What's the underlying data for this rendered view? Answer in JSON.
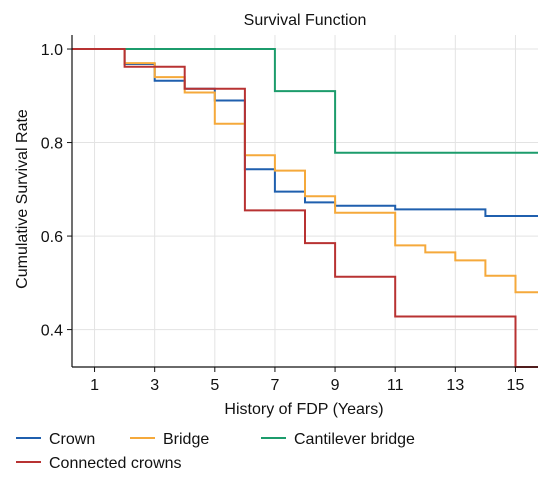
{
  "chart_data": {
    "type": "line",
    "step": "post",
    "title": "Survival Function",
    "xlabel": "History of FDP (Years)",
    "ylabel": "Cumulative Survival Rate",
    "xlim": [
      0.25,
      15.75
    ],
    "ylim": [
      0.32,
      1.03
    ],
    "xticks": [
      1,
      3,
      5,
      7,
      9,
      11,
      13,
      15
    ],
    "yticks": [
      0.4,
      0.6,
      0.8,
      1.0
    ],
    "ytick_labels": [
      "0.4",
      "0.6",
      "0.8",
      "1.0"
    ],
    "grid": true,
    "legend_position": "bottom",
    "series": [
      {
        "name": "Crown",
        "color": "#1f5fae",
        "x": [
          0.25,
          2,
          3,
          4,
          5,
          6,
          7,
          8,
          9,
          11,
          14,
          15.75
        ],
        "y": [
          1.0,
          0.968,
          0.932,
          0.915,
          0.89,
          0.743,
          0.695,
          0.672,
          0.665,
          0.657,
          0.643,
          0.643
        ]
      },
      {
        "name": "Bridge",
        "color": "#f5a93b",
        "x": [
          0.25,
          2,
          3,
          4,
          5,
          6,
          7,
          8,
          9,
          11,
          12,
          13,
          14,
          15,
          15.75
        ],
        "y": [
          1.0,
          0.97,
          0.94,
          0.907,
          0.84,
          0.773,
          0.74,
          0.685,
          0.65,
          0.58,
          0.565,
          0.548,
          0.515,
          0.48,
          0.48
        ]
      },
      {
        "name": "Cantilever bridge",
        "color": "#1c9c6c",
        "x": [
          0.25,
          7,
          9,
          15.75
        ],
        "y": [
          1.0,
          0.91,
          0.778,
          0.778
        ]
      },
      {
        "name": "Connected crowns",
        "color": "#b83232",
        "x": [
          0.25,
          2,
          4,
          6,
          8,
          9,
          11,
          15,
          15.75
        ],
        "y": [
          1.0,
          0.962,
          0.915,
          0.655,
          0.585,
          0.513,
          0.428,
          0.32,
          0.32
        ]
      }
    ]
  }
}
